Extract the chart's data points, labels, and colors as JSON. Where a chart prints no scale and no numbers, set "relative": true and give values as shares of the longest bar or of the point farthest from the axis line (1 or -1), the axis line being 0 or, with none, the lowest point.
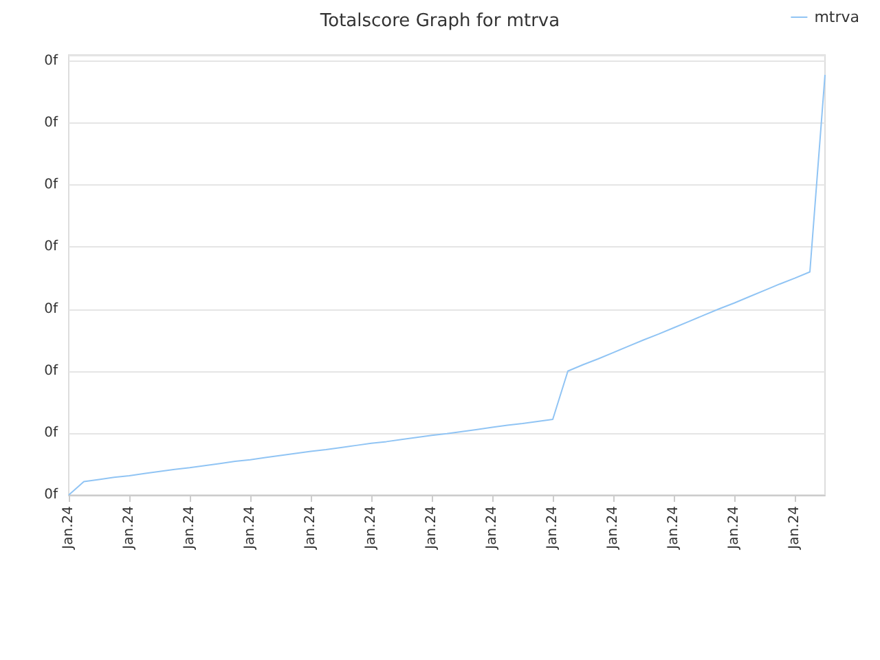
{
  "chart_data": {
    "type": "line",
    "title": "Totalscore Graph for mtrva",
    "relative": true,
    "categories": [
      "Jan.24",
      null,
      null,
      null,
      "Jan.24",
      null,
      null,
      null,
      "Jan.24",
      null,
      null,
      null,
      "Jan.24",
      null,
      null,
      null,
      "Jan.24",
      null,
      null,
      null,
      "Jan.24",
      null,
      null,
      null,
      "Jan.24",
      null,
      null,
      null,
      "Jan.24",
      null,
      null,
      null,
      "Jan.24",
      null,
      null,
      null,
      "Jan.24",
      null,
      null,
      null,
      "Jan.24",
      null,
      null,
      null,
      "Jan.24",
      null,
      null,
      null,
      "Jan.24",
      null,
      null
    ],
    "series": [
      {
        "name": "mtrva",
        "color": "#90c4f4",
        "values": [
          0,
          0.032,
          0.037,
          0.042,
          0.046,
          0.051,
          0.056,
          0.061,
          0.065,
          0.07,
          0.075,
          0.08,
          0.084,
          0.089,
          0.094,
          0.099,
          0.104,
          0.108,
          0.113,
          0.118,
          0.123,
          0.127,
          0.132,
          0.137,
          0.142,
          0.146,
          0.151,
          0.156,
          0.161,
          0.166,
          0.17,
          0.175,
          0.18,
          0.295,
          0.31,
          0.324,
          0.339,
          0.354,
          0.369,
          0.383,
          0.398,
          0.413,
          0.428,
          0.443,
          0.457,
          0.472,
          0.487,
          0.502,
          0.516,
          0.531,
          1
        ]
      }
    ],
    "annotations": [
      "0f",
      "0f",
      "0f",
      "0f",
      "0f",
      "0f",
      "0f",
      "0f"
    ],
    "grid": "y",
    "legend": "top right",
    "marker": "none",
    "line_style": "solid"
  }
}
